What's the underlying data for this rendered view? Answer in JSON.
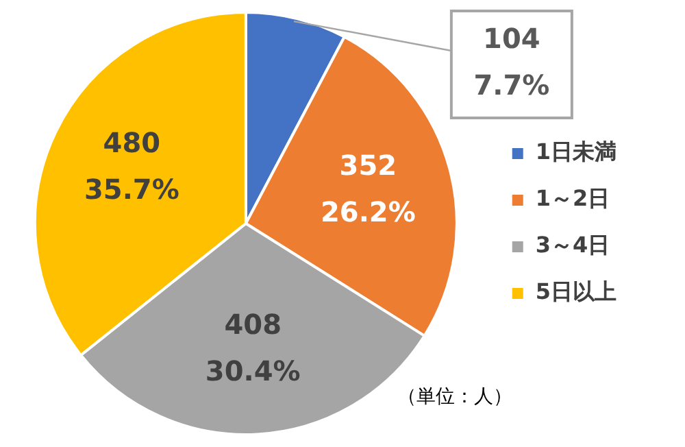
{
  "chart_data": {
    "type": "pie",
    "categories": [
      "1日未満",
      "1～2日",
      "3～4日",
      "5日以上"
    ],
    "values": [
      104,
      352,
      408,
      480
    ],
    "colors": [
      "#4472c4",
      "#ed7d31",
      "#a5a5a5",
      "#ffc000"
    ],
    "value_labels": [
      "104\n7.7%",
      "352\n26.2%",
      "408\n30.4%",
      "480\n35.7%"
    ],
    "legend": "right",
    "annotations": [
      "（単位：人）"
    ]
  }
}
